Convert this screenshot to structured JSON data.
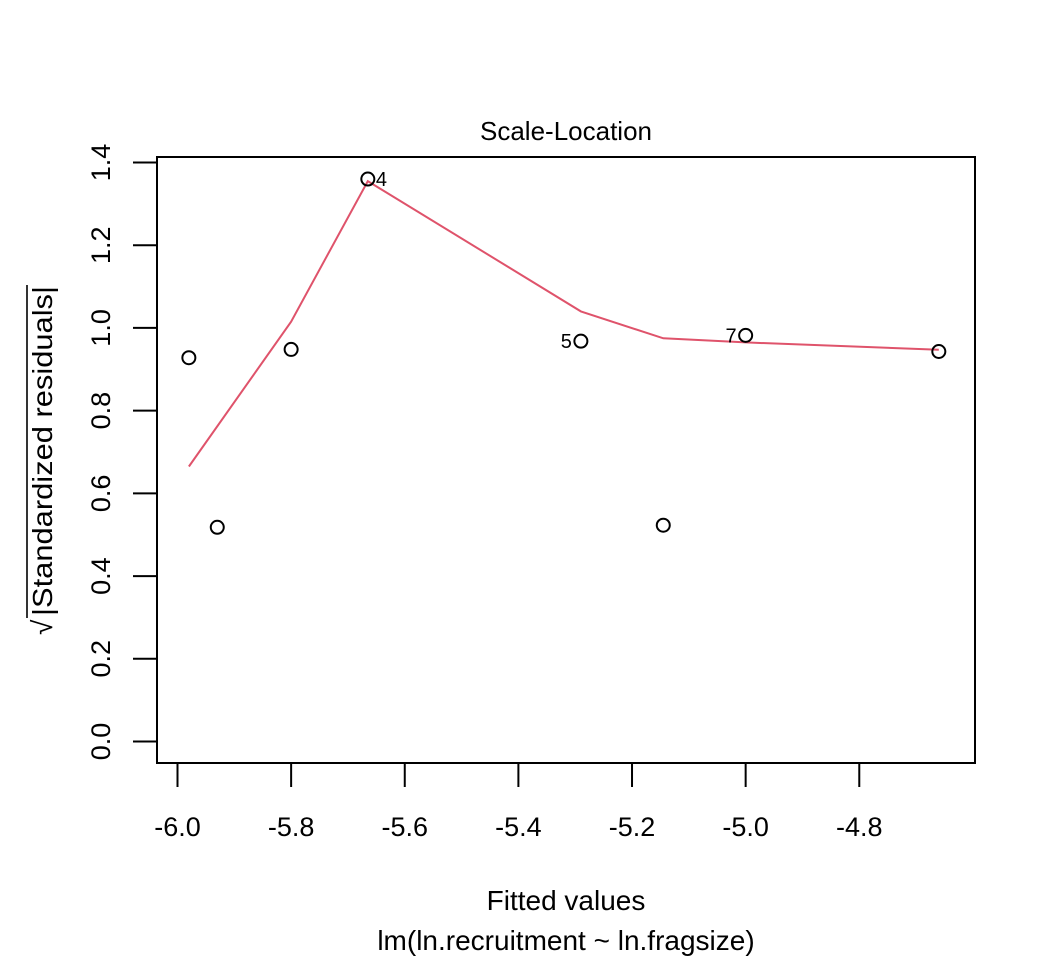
{
  "chart_data": {
    "type": "scatter",
    "title": "Scale-Location",
    "xlabel": "Fitted values",
    "xsublabel": "lm(ln.recruitment ~ ln.fragsize)",
    "ylabel_radical": "√",
    "ylabel_text": "|Standardized residuals|",
    "xlim": [
      -6.0,
      -4.65
    ],
    "ylim": [
      0.0,
      1.4
    ],
    "x_ticks": [
      -6.0,
      -5.8,
      -5.6,
      -5.4,
      -5.2,
      -5.0,
      -4.8
    ],
    "x_tick_labels": [
      "-6.0",
      "-5.8",
      "-5.6",
      "-5.4",
      "-5.2",
      "-5.0",
      "-4.8"
    ],
    "y_ticks": [
      0.0,
      0.2,
      0.4,
      0.6,
      0.8,
      1.0,
      1.2,
      1.4
    ],
    "y_tick_labels": [
      "0.0",
      "0.2",
      "0.4",
      "0.6",
      "0.8",
      "1.0",
      "1.2",
      "1.4"
    ],
    "points": [
      {
        "x": -5.98,
        "y": 0.928,
        "label": ""
      },
      {
        "x": -5.93,
        "y": 0.518,
        "label": ""
      },
      {
        "x": -5.8,
        "y": 0.948,
        "label": ""
      },
      {
        "x": -5.665,
        "y": 1.36,
        "label": "4",
        "label_side": "right"
      },
      {
        "x": -5.29,
        "y": 0.968,
        "label": "5",
        "label_side": "left"
      },
      {
        "x": -5.145,
        "y": 0.523,
        "label": ""
      },
      {
        "x": -5.0,
        "y": 0.982,
        "label": "7",
        "label_side": "left"
      },
      {
        "x": -4.66,
        "y": 0.943,
        "label": ""
      }
    ],
    "smooth_line": {
      "color": "#DF536B",
      "x": [
        -5.98,
        -5.8,
        -5.665,
        -5.29,
        -5.145,
        -5.0,
        -4.66
      ],
      "y": [
        0.665,
        1.015,
        1.355,
        1.04,
        0.975,
        0.965,
        0.947
      ]
    },
    "grid": false,
    "legend": "none"
  }
}
